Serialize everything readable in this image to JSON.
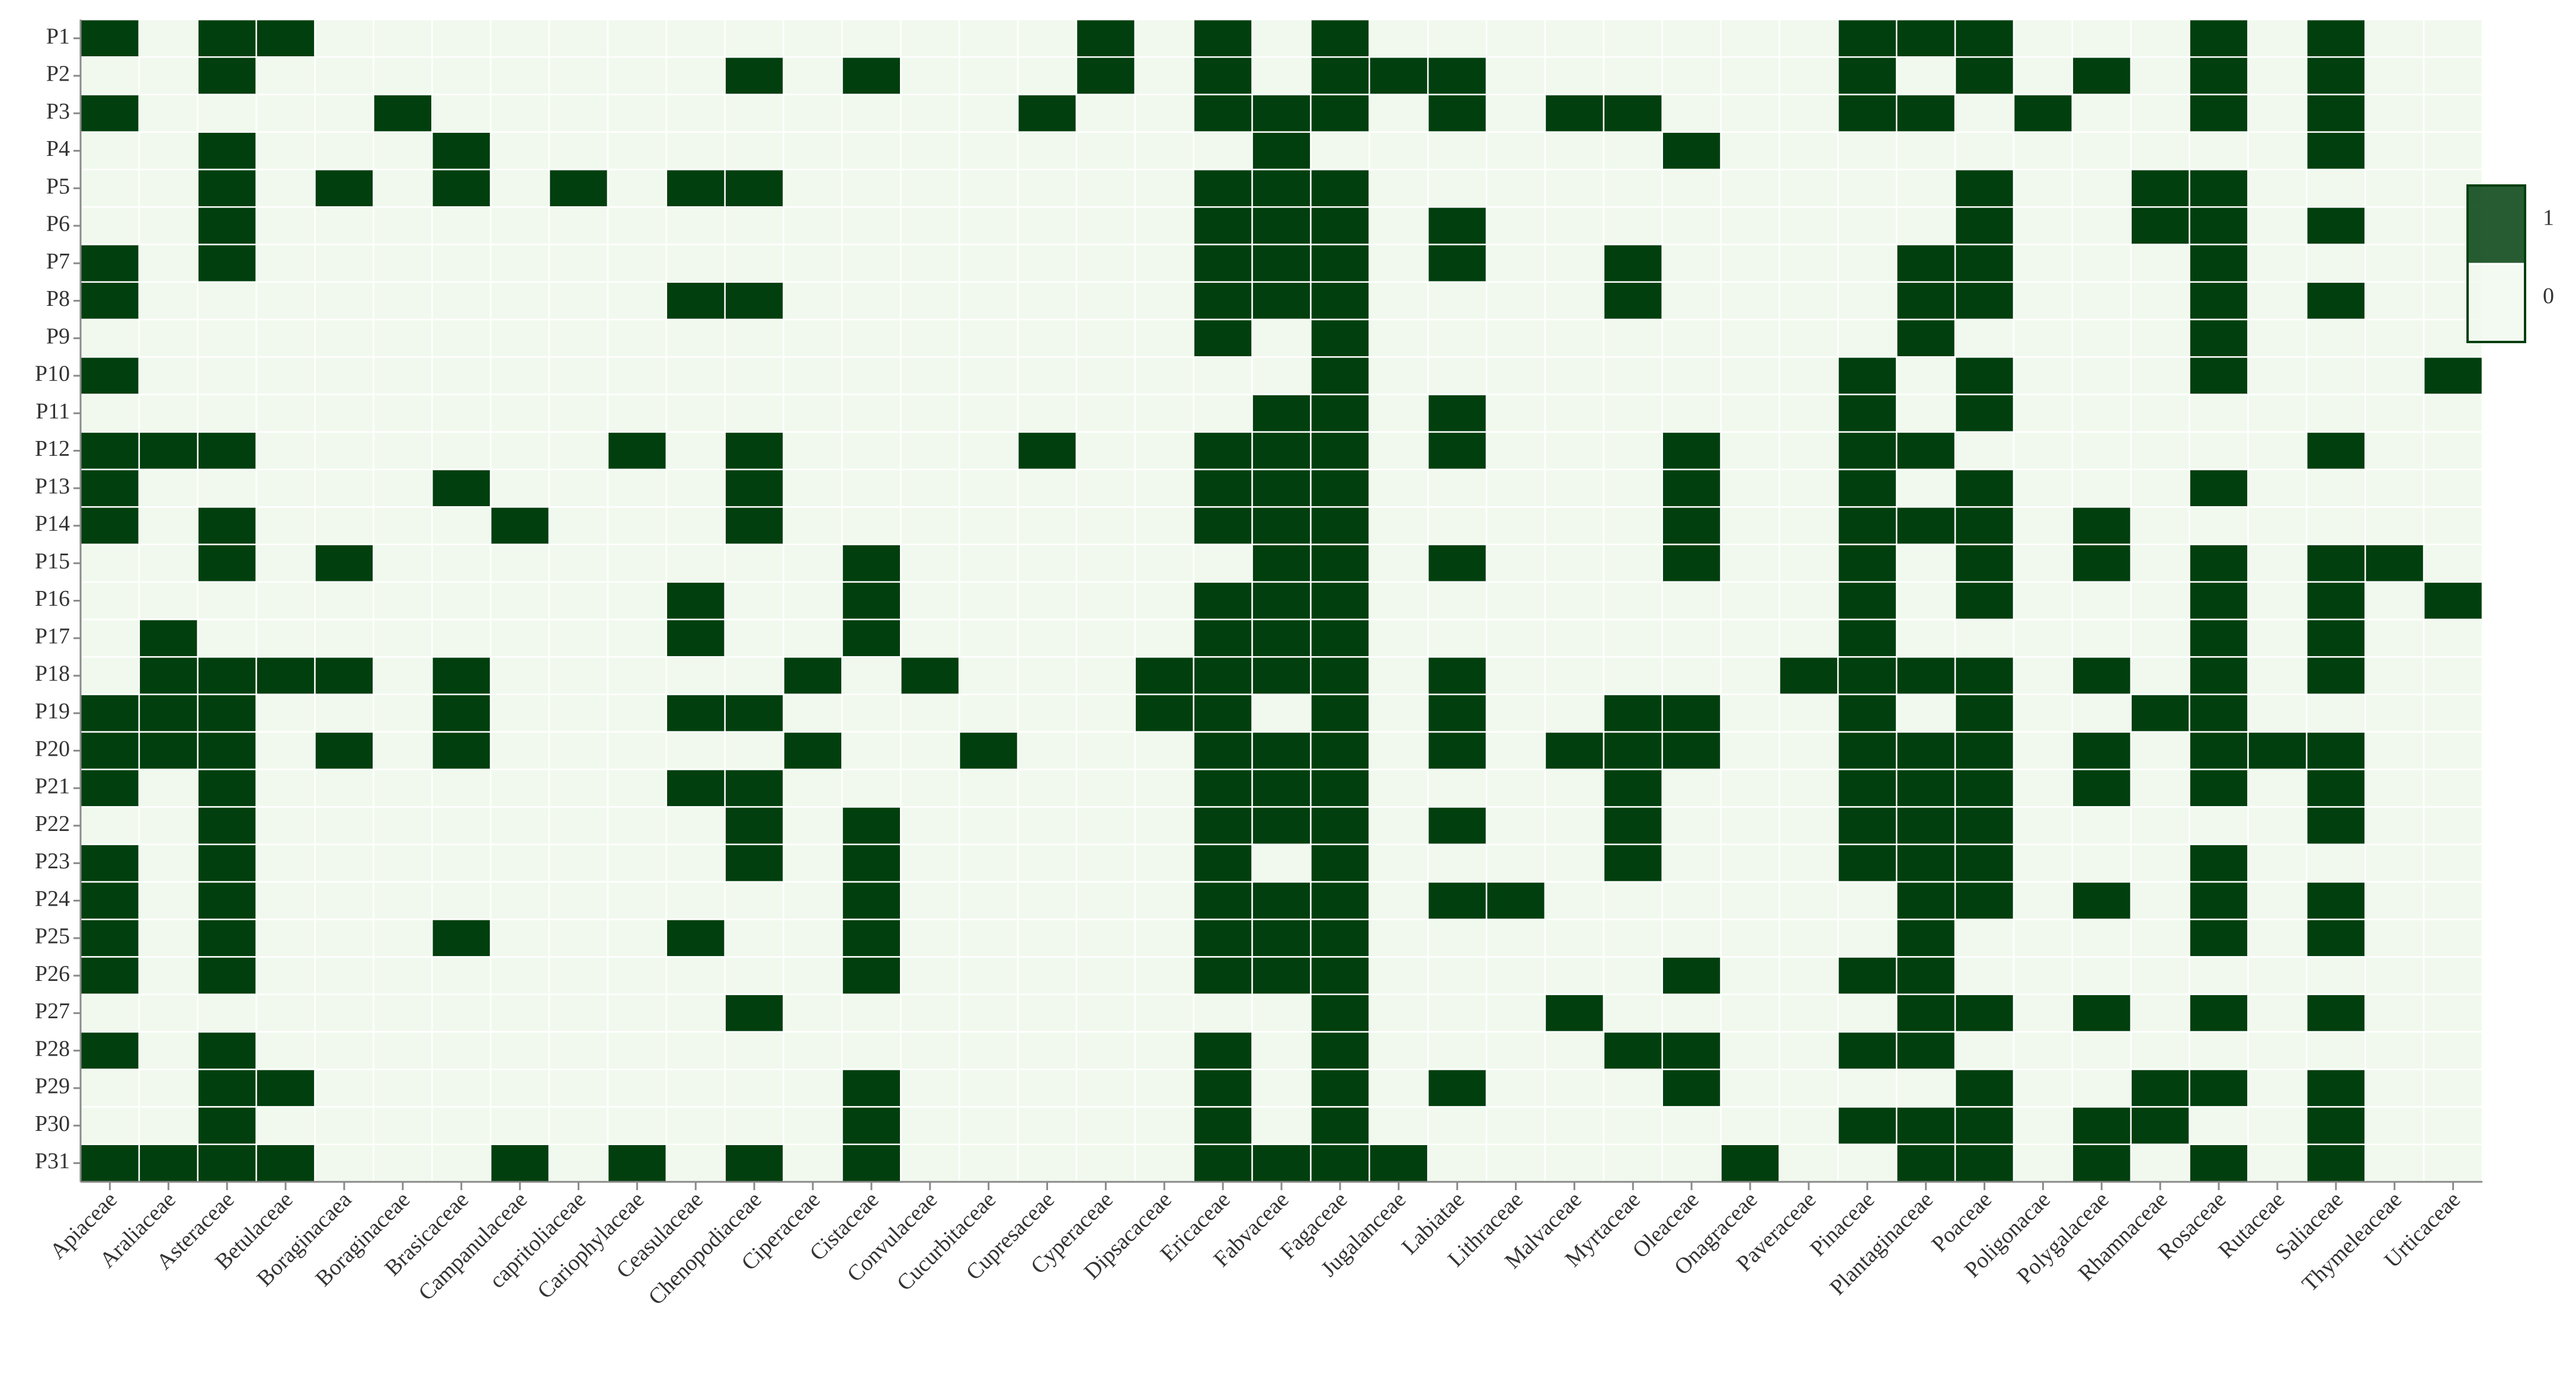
{
  "chart_data": {
    "type": "heatmap",
    "x": [
      "Apiaceae",
      "Araliaceae",
      "Asteraceae",
      "Betulaceae",
      "Boraginacaea",
      "Boraginaceae",
      "Brasicaceae",
      "Campanulaceae",
      "capritoliaceae",
      "Cariophylaceae",
      "Ceasulaceae",
      "Chenopodiaceae",
      "Ciperaceae",
      "Cistaceae",
      "Convulaceae",
      "Cucurbitaceae",
      "Cupresaceae",
      "Cyperaceae",
      "Dipsacaceae",
      "Ericaceae",
      "Fabvaceae",
      "Fagaceae",
      "Jugalanceae",
      "Labiatae",
      "Lithraceae",
      "Malvaceae",
      "Myrtaceae",
      "Oleaceae",
      "Onagraceae",
      "Paveraceae",
      "Pinaceae",
      "Plantaginaceae",
      "Poaceae",
      "Poligonacae",
      "Polygalaceae",
      "Rhamnaceae",
      "Rosaceae",
      "Rutaceae",
      "Saliaceae",
      "Thymeleaceae",
      "Urticaceae"
    ],
    "y": [
      "P1",
      "P2",
      "P3",
      "P4",
      "P5",
      "P6",
      "P7",
      "P8",
      "P9",
      "P10",
      "P11",
      "P12",
      "P13",
      "P14",
      "P15",
      "P16",
      "P17",
      "P18",
      "P19",
      "P20",
      "P21",
      "P22",
      "P23",
      "P24",
      "P25",
      "P26",
      "P27",
      "P28",
      "P29",
      "P30",
      "P31"
    ],
    "z": [
      [
        1,
        0,
        1,
        1,
        0,
        0,
        0,
        0,
        0,
        0,
        0,
        0,
        0,
        0,
        0,
        0,
        0,
        1,
        0,
        1,
        0,
        1,
        0,
        0,
        0,
        0,
        0,
        0,
        0,
        0,
        1,
        1,
        1,
        0,
        0,
        0,
        1,
        0,
        1,
        0,
        0
      ],
      [
        0,
        0,
        1,
        0,
        0,
        0,
        0,
        0,
        0,
        0,
        0,
        1,
        0,
        1,
        0,
        0,
        0,
        1,
        0,
        1,
        0,
        1,
        1,
        1,
        0,
        0,
        0,
        0,
        0,
        0,
        1,
        0,
        1,
        0,
        1,
        0,
        1,
        0,
        1,
        0,
        0
      ],
      [
        1,
        0,
        0,
        0,
        0,
        1,
        0,
        0,
        0,
        0,
        0,
        0,
        0,
        0,
        0,
        0,
        1,
        0,
        0,
        1,
        1,
        1,
        0,
        1,
        0,
        1,
        1,
        0,
        0,
        0,
        1,
        1,
        0,
        1,
        0,
        0,
        1,
        0,
        1,
        0,
        0
      ],
      [
        0,
        0,
        1,
        0,
        0,
        0,
        1,
        0,
        0,
        0,
        0,
        0,
        0,
        0,
        0,
        0,
        0,
        0,
        0,
        0,
        1,
        0,
        0,
        0,
        0,
        0,
        0,
        1,
        0,
        0,
        0,
        0,
        0,
        0,
        0,
        0,
        0,
        0,
        1,
        0,
        0
      ],
      [
        0,
        0,
        1,
        0,
        1,
        0,
        1,
        0,
        1,
        0,
        1,
        1,
        0,
        0,
        0,
        0,
        0,
        0,
        0,
        1,
        1,
        1,
        0,
        0,
        0,
        0,
        0,
        0,
        0,
        0,
        0,
        0,
        1,
        0,
        0,
        1,
        1,
        0,
        0,
        0,
        0
      ],
      [
        0,
        0,
        1,
        0,
        0,
        0,
        0,
        0,
        0,
        0,
        0,
        0,
        0,
        0,
        0,
        0,
        0,
        0,
        0,
        1,
        1,
        1,
        0,
        1,
        0,
        0,
        0,
        0,
        0,
        0,
        0,
        0,
        1,
        0,
        0,
        1,
        1,
        0,
        1,
        0,
        0
      ],
      [
        1,
        0,
        1,
        0,
        0,
        0,
        0,
        0,
        0,
        0,
        0,
        0,
        0,
        0,
        0,
        0,
        0,
        0,
        0,
        1,
        1,
        1,
        0,
        1,
        0,
        0,
        1,
        0,
        0,
        0,
        0,
        1,
        1,
        0,
        0,
        0,
        1,
        0,
        0,
        0,
        0
      ],
      [
        1,
        0,
        0,
        0,
        0,
        0,
        0,
        0,
        0,
        0,
        1,
        1,
        0,
        0,
        0,
        0,
        0,
        0,
        0,
        1,
        1,
        1,
        0,
        0,
        0,
        0,
        1,
        0,
        0,
        0,
        0,
        1,
        1,
        0,
        0,
        0,
        1,
        0,
        1,
        0,
        0
      ],
      [
        0,
        0,
        0,
        0,
        0,
        0,
        0,
        0,
        0,
        0,
        0,
        0,
        0,
        0,
        0,
        0,
        0,
        0,
        0,
        1,
        0,
        1,
        0,
        0,
        0,
        0,
        0,
        0,
        0,
        0,
        0,
        1,
        0,
        0,
        0,
        0,
        1,
        0,
        0,
        0,
        0
      ],
      [
        1,
        0,
        0,
        0,
        0,
        0,
        0,
        0,
        0,
        0,
        0,
        0,
        0,
        0,
        0,
        0,
        0,
        0,
        0,
        0,
        0,
        1,
        0,
        0,
        0,
        0,
        0,
        0,
        0,
        0,
        1,
        0,
        1,
        0,
        0,
        0,
        1,
        0,
        0,
        0,
        1
      ],
      [
        0,
        0,
        0,
        0,
        0,
        0,
        0,
        0,
        0,
        0,
        0,
        0,
        0,
        0,
        0,
        0,
        0,
        0,
        0,
        0,
        1,
        1,
        0,
        1,
        0,
        0,
        0,
        0,
        0,
        0,
        1,
        0,
        1,
        0,
        0,
        0,
        0,
        0,
        0,
        0,
        0
      ],
      [
        1,
        1,
        1,
        0,
        0,
        0,
        0,
        0,
        0,
        1,
        0,
        1,
        0,
        0,
        0,
        0,
        1,
        0,
        0,
        1,
        1,
        1,
        0,
        1,
        0,
        0,
        0,
        1,
        0,
        0,
        1,
        1,
        0,
        0,
        0,
        0,
        0,
        0,
        1,
        0,
        0
      ],
      [
        1,
        0,
        0,
        0,
        0,
        0,
        1,
        0,
        0,
        0,
        0,
        1,
        0,
        0,
        0,
        0,
        0,
        0,
        0,
        1,
        1,
        1,
        0,
        0,
        0,
        0,
        0,
        1,
        0,
        0,
        1,
        0,
        1,
        0,
        0,
        0,
        1,
        0,
        0,
        0,
        0
      ],
      [
        1,
        0,
        1,
        0,
        0,
        0,
        0,
        1,
        0,
        0,
        0,
        1,
        0,
        0,
        0,
        0,
        0,
        0,
        0,
        1,
        1,
        1,
        0,
        0,
        0,
        0,
        0,
        1,
        0,
        0,
        1,
        1,
        1,
        0,
        1,
        0,
        0,
        0,
        0,
        0,
        0
      ],
      [
        0,
        0,
        1,
        0,
        1,
        0,
        0,
        0,
        0,
        0,
        0,
        0,
        0,
        1,
        0,
        0,
        0,
        0,
        0,
        0,
        1,
        1,
        0,
        1,
        0,
        0,
        0,
        1,
        0,
        0,
        1,
        0,
        1,
        0,
        1,
        0,
        1,
        0,
        1,
        1,
        0
      ],
      [
        0,
        0,
        0,
        0,
        0,
        0,
        0,
        0,
        0,
        0,
        1,
        0,
        0,
        1,
        0,
        0,
        0,
        0,
        0,
        1,
        1,
        1,
        0,
        0,
        0,
        0,
        0,
        0,
        0,
        0,
        1,
        0,
        1,
        0,
        0,
        0,
        1,
        0,
        1,
        0,
        1
      ],
      [
        0,
        1,
        0,
        0,
        0,
        0,
        0,
        0,
        0,
        0,
        1,
        0,
        0,
        1,
        0,
        0,
        0,
        0,
        0,
        1,
        1,
        1,
        0,
        0,
        0,
        0,
        0,
        0,
        0,
        0,
        1,
        0,
        0,
        0,
        0,
        0,
        1,
        0,
        1,
        0,
        0
      ],
      [
        0,
        1,
        1,
        1,
        1,
        0,
        1,
        0,
        0,
        0,
        0,
        0,
        1,
        0,
        1,
        0,
        0,
        0,
        1,
        1,
        1,
        1,
        0,
        1,
        0,
        0,
        0,
        0,
        0,
        1,
        1,
        1,
        1,
        0,
        1,
        0,
        1,
        0,
        1,
        0,
        0
      ],
      [
        1,
        1,
        1,
        0,
        0,
        0,
        1,
        0,
        0,
        0,
        1,
        1,
        0,
        0,
        0,
        0,
        0,
        0,
        1,
        1,
        0,
        1,
        0,
        1,
        0,
        0,
        1,
        1,
        0,
        0,
        1,
        0,
        1,
        0,
        0,
        1,
        1,
        0,
        0,
        0,
        0
      ],
      [
        1,
        1,
        1,
        0,
        1,
        0,
        1,
        0,
        0,
        0,
        0,
        0,
        1,
        0,
        0,
        1,
        0,
        0,
        0,
        1,
        1,
        1,
        0,
        1,
        0,
        1,
        1,
        1,
        0,
        0,
        1,
        1,
        1,
        0,
        1,
        0,
        1,
        1,
        1,
        0,
        0
      ],
      [
        1,
        0,
        1,
        0,
        0,
        0,
        0,
        0,
        0,
        0,
        1,
        1,
        0,
        0,
        0,
        0,
        0,
        0,
        0,
        1,
        1,
        1,
        0,
        0,
        0,
        0,
        1,
        0,
        0,
        0,
        1,
        1,
        1,
        0,
        1,
        0,
        1,
        0,
        1,
        0,
        0
      ],
      [
        0,
        0,
        1,
        0,
        0,
        0,
        0,
        0,
        0,
        0,
        0,
        1,
        0,
        1,
        0,
        0,
        0,
        0,
        0,
        1,
        1,
        1,
        0,
        1,
        0,
        0,
        1,
        0,
        0,
        0,
        1,
        1,
        1,
        0,
        0,
        0,
        0,
        0,
        1,
        0,
        0
      ],
      [
        1,
        0,
        1,
        0,
        0,
        0,
        0,
        0,
        0,
        0,
        0,
        1,
        0,
        1,
        0,
        0,
        0,
        0,
        0,
        1,
        0,
        1,
        0,
        0,
        0,
        0,
        1,
        0,
        0,
        0,
        1,
        1,
        1,
        0,
        0,
        0,
        1,
        0,
        0,
        0,
        0
      ],
      [
        1,
        0,
        1,
        0,
        0,
        0,
        0,
        0,
        0,
        0,
        0,
        0,
        0,
        1,
        0,
        0,
        0,
        0,
        0,
        1,
        1,
        1,
        0,
        1,
        1,
        0,
        0,
        0,
        0,
        0,
        0,
        1,
        1,
        0,
        1,
        0,
        1,
        0,
        1,
        0,
        0
      ],
      [
        1,
        0,
        1,
        0,
        0,
        0,
        1,
        0,
        0,
        0,
        1,
        0,
        0,
        1,
        0,
        0,
        0,
        0,
        0,
        1,
        1,
        1,
        0,
        0,
        0,
        0,
        0,
        0,
        0,
        0,
        0,
        1,
        0,
        0,
        0,
        0,
        1,
        0,
        1,
        0,
        0
      ],
      [
        1,
        0,
        1,
        0,
        0,
        0,
        0,
        0,
        0,
        0,
        0,
        0,
        0,
        1,
        0,
        0,
        0,
        0,
        0,
        1,
        1,
        1,
        0,
        0,
        0,
        0,
        0,
        1,
        0,
        0,
        1,
        1,
        0,
        0,
        0,
        0,
        0,
        0,
        0,
        0,
        0
      ],
      [
        0,
        0,
        0,
        0,
        0,
        0,
        0,
        0,
        0,
        0,
        0,
        1,
        0,
        0,
        0,
        0,
        0,
        0,
        0,
        0,
        0,
        1,
        0,
        0,
        0,
        1,
        0,
        0,
        0,
        0,
        0,
        1,
        1,
        0,
        1,
        0,
        1,
        0,
        1,
        0,
        0
      ],
      [
        1,
        0,
        1,
        0,
        0,
        0,
        0,
        0,
        0,
        0,
        0,
        0,
        0,
        0,
        0,
        0,
        0,
        0,
        0,
        1,
        0,
        1,
        0,
        0,
        0,
        0,
        1,
        1,
        0,
        0,
        1,
        1,
        0,
        0,
        0,
        0,
        0,
        0,
        0,
        0,
        0
      ],
      [
        0,
        0,
        1,
        1,
        0,
        0,
        0,
        0,
        0,
        0,
        0,
        0,
        0,
        1,
        0,
        0,
        0,
        0,
        0,
        1,
        0,
        1,
        0,
        1,
        0,
        0,
        0,
        1,
        0,
        0,
        0,
        0,
        1,
        0,
        0,
        1,
        1,
        0,
        1,
        0,
        0
      ],
      [
        0,
        0,
        1,
        0,
        0,
        0,
        0,
        0,
        0,
        0,
        0,
        0,
        0,
        1,
        0,
        0,
        0,
        0,
        0,
        1,
        0,
        1,
        0,
        0,
        0,
        0,
        0,
        0,
        0,
        0,
        1,
        1,
        1,
        0,
        1,
        1,
        0,
        0,
        1,
        0,
        0
      ],
      [
        1,
        1,
        1,
        1,
        0,
        0,
        0,
        1,
        0,
        1,
        0,
        1,
        0,
        1,
        0,
        0,
        0,
        0,
        0,
        1,
        1,
        1,
        1,
        0,
        0,
        0,
        0,
        0,
        1,
        0,
        0,
        1,
        1,
        0,
        1,
        0,
        1,
        0,
        1,
        0,
        0
      ]
    ],
    "colorscale": [
      "#f1f9ee",
      "#013f0e"
    ],
    "zlim": [
      0,
      1
    ],
    "zticks": [
      1,
      0
    ]
  }
}
